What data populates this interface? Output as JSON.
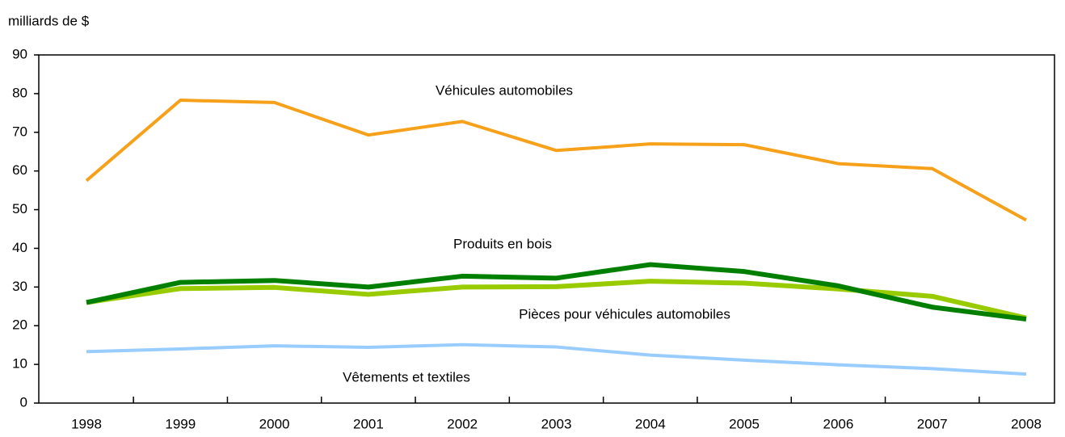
{
  "chart_data": {
    "type": "line",
    "y_axis_label": "milliards de $",
    "categories": [
      "1998",
      "1999",
      "2000",
      "2001",
      "2002",
      "2003",
      "2004",
      "2005",
      "2006",
      "2007",
      "2008"
    ],
    "series": [
      {
        "name": "Véhicules automobiles",
        "color": "#f7a01a",
        "values": [
          57.5,
          78.3,
          77.7,
          69.3,
          72.8,
          65.3,
          67,
          66.8,
          61.9,
          60.6,
          47.3
        ]
      },
      {
        "name": "Pièces pour véhicules automobiles",
        "color": "#99cc00",
        "values": [
          26,
          29.6,
          29.9,
          28.1,
          30,
          30.1,
          31.5,
          31,
          29.5,
          27.6,
          22
        ]
      },
      {
        "name": "Produits en bois",
        "color": "#007f00",
        "values": [
          26,
          31.2,
          31.7,
          30,
          32.8,
          32.3,
          35.8,
          34,
          30.3,
          24.8,
          21.7
        ]
      },
      {
        "name": "Vêtements et textiles",
        "color": "#99ccff",
        "values": [
          13.3,
          14,
          14.8,
          14.4,
          15.1,
          14.5,
          12.4,
          11.1,
          9.9,
          8.9,
          7.5
        ]
      }
    ],
    "ylim": [
      0,
      90
    ],
    "yticks": [
      0,
      10,
      20,
      30,
      40,
      50,
      60,
      70,
      80,
      90
    ],
    "grid": false
  }
}
